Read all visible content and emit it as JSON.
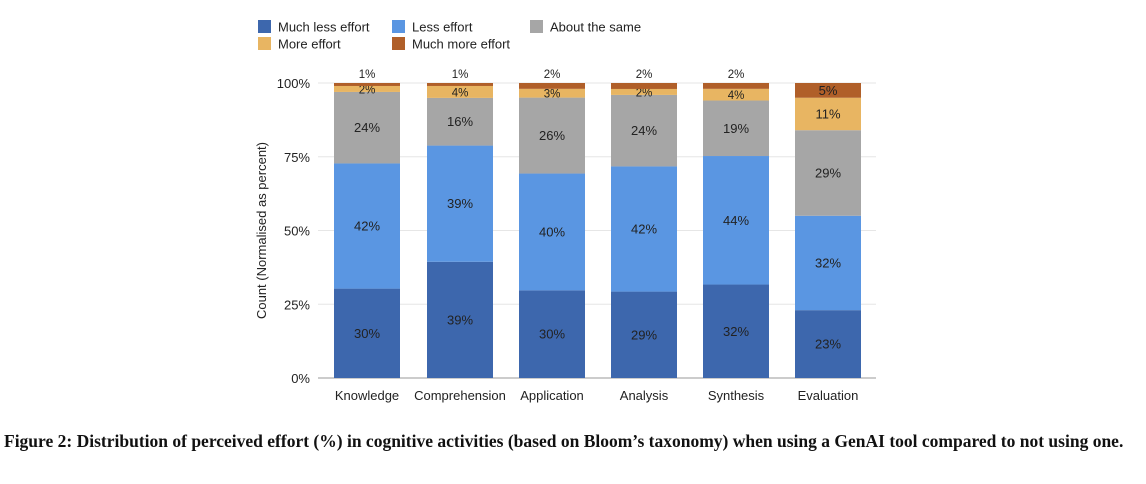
{
  "chart_data": {
    "type": "bar",
    "stacked": true,
    "ylabel": "Count (Normalised as percent)",
    "ylim": [
      0,
      100
    ],
    "yticks": [
      "0%",
      "25%",
      "50%",
      "75%",
      "100%"
    ],
    "ytick_values": [
      0,
      25,
      50,
      75,
      100
    ],
    "categories": [
      "Knowledge",
      "Comprehension",
      "Application",
      "Analysis",
      "Synthesis",
      "Evaluation"
    ],
    "legend_placement": "top",
    "series": [
      {
        "name": "Much less effort",
        "color": "#3d67ad",
        "values": [
          30,
          39,
          30,
          29,
          32,
          23
        ]
      },
      {
        "name": "Less effort",
        "color": "#5a96e2",
        "values": [
          42,
          39,
          40,
          42,
          44,
          32
        ]
      },
      {
        "name": "About the same",
        "color": "#a6a6a6",
        "values": [
          24,
          16,
          26,
          24,
          19,
          29
        ]
      },
      {
        "name": "More effort",
        "color": "#e8b562",
        "values": [
          2,
          4,
          3,
          2,
          4,
          11
        ]
      },
      {
        "name": "Much more effort",
        "color": "#b05f29",
        "values": [
          1,
          1,
          2,
          2,
          2,
          5
        ]
      }
    ]
  },
  "caption": "Figure 2: Distribution of perceived effort (%) in cognitive activities (based on Bloom’s taxonomy) when using a GenAI tool compared to not using one."
}
